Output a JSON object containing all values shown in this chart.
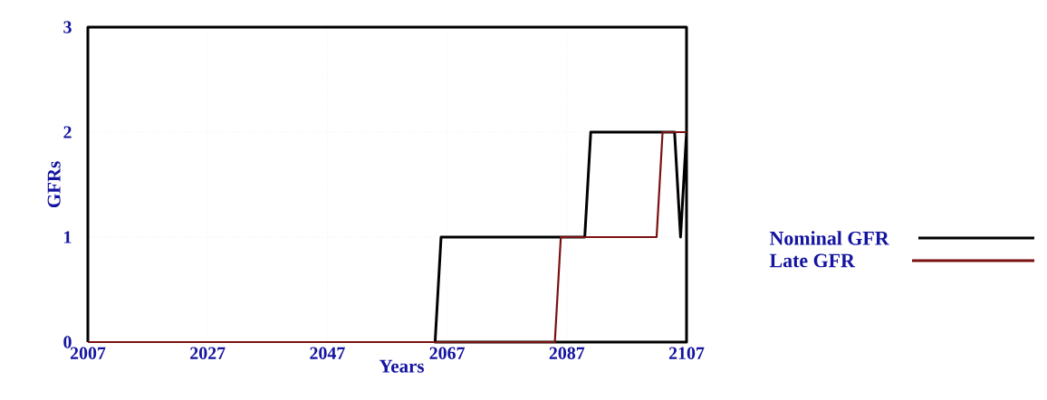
{
  "chart_data": {
    "type": "line",
    "xlabel": "Years",
    "ylabel": "GFRs",
    "xlim": [
      2007,
      2107
    ],
    "xticks": [
      2007,
      2027,
      2047,
      2067,
      2087,
      2107
    ],
    "ylim": [
      0,
      3
    ],
    "yticks": [
      0,
      1,
      2,
      3
    ],
    "grid": true,
    "legend": "right",
    "line_style": "solid",
    "marker": "none",
    "series": [
      {
        "name": "Nominal GFR",
        "color": "#000000",
        "x": [
          2007,
          2007,
          2107,
          2107,
          2065,
          2066,
          2090,
          2091,
          2105,
          2106,
          2107
        ],
        "values": [
          0,
          3,
          3,
          0,
          0,
          1,
          1,
          2,
          2,
          1,
          2
        ]
      },
      {
        "name": "Late GFR",
        "color": "#7a1010",
        "x": [
          2007,
          2085,
          2086,
          2102,
          2103,
          2107
        ],
        "values": [
          0,
          0,
          1,
          1,
          2,
          2
        ]
      }
    ]
  }
}
